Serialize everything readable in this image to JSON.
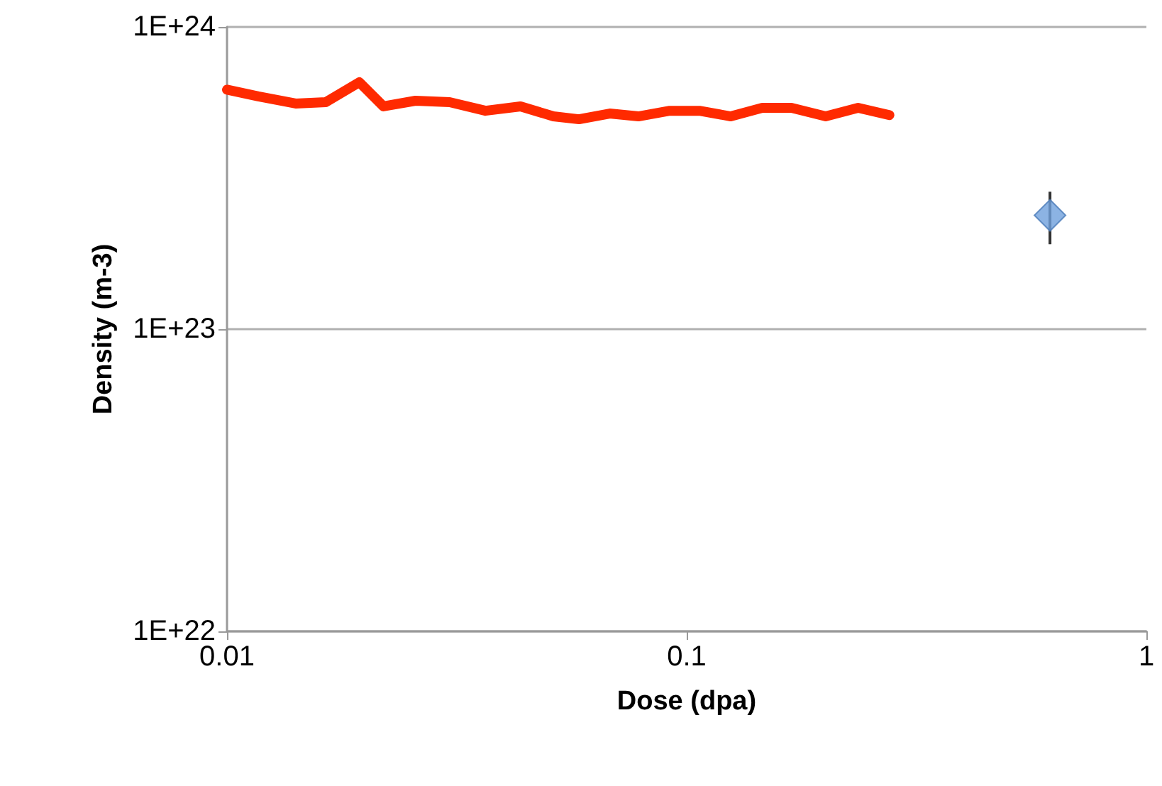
{
  "chart_data": {
    "type": "line",
    "xlabel": "Dose (dpa)",
    "ylabel": "Density (m-3)",
    "log": "xy",
    "grid": "y",
    "xlim": [
      0.01,
      1
    ],
    "xticks": [
      0.01,
      0.1,
      1
    ],
    "ylim": [
      1e+22,
      1e+24
    ],
    "yticks": [
      {
        "value": 1e+22,
        "label": "1E+22"
      },
      {
        "value": 1e+23,
        "label": "1E+23"
      },
      {
        "value": 1e+24,
        "label": "1E+24"
      }
    ],
    "series": [
      {
        "color": "#ff2a00",
        "marker": "none",
        "line_style": "solid",
        "x": [
          0.01,
          0.0117,
          0.0141,
          0.0164,
          0.0194,
          0.0219,
          0.0257,
          0.0305,
          0.0365,
          0.0435,
          0.0513,
          0.0583,
          0.068,
          0.0785,
          0.0918,
          0.1066,
          0.1247,
          0.146,
          0.169,
          0.2006,
          0.236,
          0.276
        ],
        "values": [
          6.2e+23,
          5.89e+23,
          5.58e+23,
          5.64e+23,
          6.56e+23,
          5.46e+23,
          5.7e+23,
          5.64e+23,
          5.28e+23,
          5.46e+23,
          5.06e+23,
          4.95e+23,
          5.17e+23,
          5.06e+23,
          5.28e+23,
          5.28e+23,
          5.06e+23,
          5.4e+23,
          5.4e+23,
          5.06e+23,
          5.4e+23,
          5.11e+23
        ]
      },
      {
        "type": "scatter",
        "color": "#6fa0dc",
        "marker": "diamond",
        "x": [
          0.617
        ],
        "values": [
          2.38e+23
        ],
        "errors": [
          [
            1.91e+23,
            2.85e+23
          ]
        ]
      }
    ]
  }
}
